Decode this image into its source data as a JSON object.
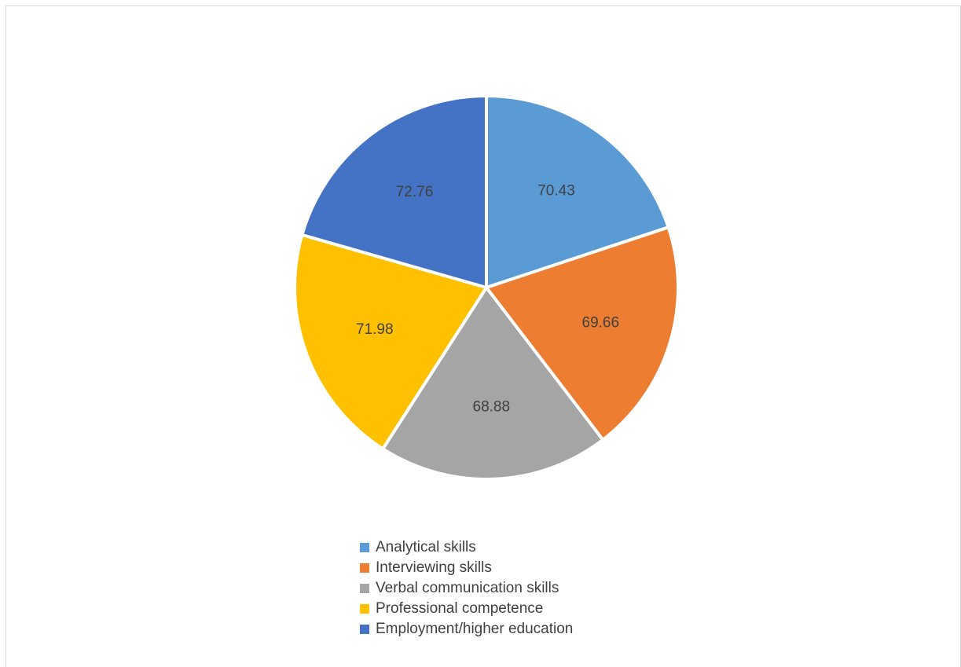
{
  "chart_data": {
    "type": "pie",
    "title": "",
    "categories": [
      "Analytical skills",
      "Interviewing skills",
      "Verbal communication skills",
      "Professional competence",
      "Employment/higher education"
    ],
    "values": [
      70.43,
      69.66,
      68.88,
      71.98,
      72.76
    ],
    "data_labels": [
      "70.43",
      "69.66",
      "68.88",
      "71.98",
      "72.76"
    ],
    "colors": [
      "#5b9bd5",
      "#ed7d31",
      "#a5a5a5",
      "#ffc000",
      "#4472c4"
    ],
    "start_angle": "12 o'clock",
    "direction": "clockwise",
    "legend_position": "bottom"
  },
  "legend": {
    "items": [
      {
        "label": "Analytical skills",
        "color": "#5b9bd5"
      },
      {
        "label": "Interviewing skills",
        "color": "#ed7d31"
      },
      {
        "label": "Verbal communication skills",
        "color": "#a5a5a5"
      },
      {
        "label": "Professional competence",
        "color": "#ffc000"
      },
      {
        "label": "Employment/higher education",
        "color": "#4472c4"
      }
    ]
  }
}
